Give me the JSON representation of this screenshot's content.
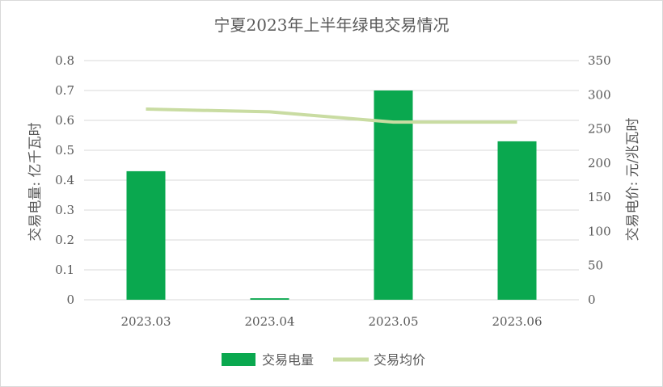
{
  "chart_data": {
    "type": "bar+line",
    "title": "宁夏2023年上半年绿电交易情况",
    "categories": [
      "2023.03",
      "2023.04",
      "2023.05",
      "2023.06"
    ],
    "series": [
      {
        "name": "交易电量",
        "type": "bar",
        "axis": "left",
        "color": "#0aa84f",
        "values": [
          0.43,
          0.005,
          0.7,
          0.53
        ]
      },
      {
        "name": "交易均价",
        "type": "line",
        "axis": "right",
        "color": "#c9dca2",
        "values": [
          279,
          275,
          260,
          260
        ]
      }
    ],
    "y_left": {
      "label": "交易电量: 亿千瓦时",
      "range": [
        0,
        0.8
      ],
      "ticks": [
        "0",
        "0.1",
        "0.2",
        "0.3",
        "0.4",
        "0.5",
        "0.6",
        "0.7",
        "0.8"
      ]
    },
    "y_right": {
      "label": "交易电价: 元/兆瓦时",
      "range": [
        0,
        350
      ],
      "ticks": [
        "0",
        "50",
        "100",
        "150",
        "200",
        "250",
        "300",
        "350"
      ]
    },
    "grid": true,
    "legend_position": "bottom"
  }
}
